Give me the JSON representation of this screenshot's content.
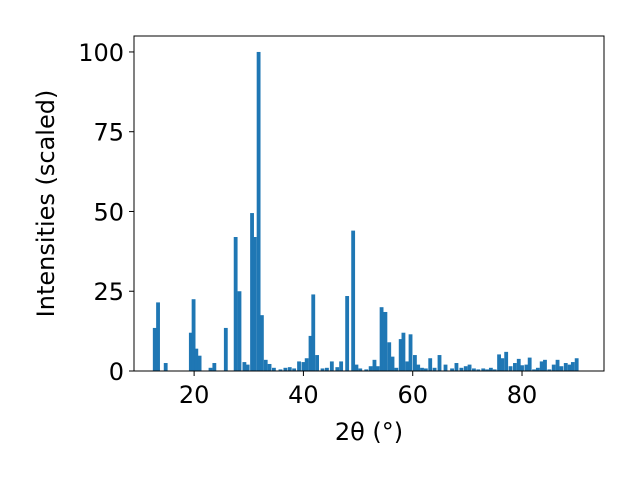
{
  "chart_data": {
    "type": "bar",
    "title": "",
    "xlabel": "2θ (°)",
    "ylabel": "Intensities (scaled)",
    "xlim": [
      9,
      95
    ],
    "ylim": [
      0,
      105
    ],
    "xticks": [
      20,
      40,
      60,
      80
    ],
    "yticks": [
      0,
      25,
      50,
      75,
      100
    ],
    "grid": false,
    "bar_color": "#1f77b4",
    "bar_width": 0.7,
    "points": [
      [
        12.8,
        13.5
      ],
      [
        13.4,
        21.5
      ],
      [
        14.8,
        2.5
      ],
      [
        19.4,
        12.0
      ],
      [
        19.9,
        22.5
      ],
      [
        20.4,
        7.0
      ],
      [
        21.0,
        4.8
      ],
      [
        23.0,
        1.0
      ],
      [
        23.7,
        2.5
      ],
      [
        25.8,
        13.5
      ],
      [
        27.6,
        42.0
      ],
      [
        28.3,
        25.0
      ],
      [
        29.2,
        2.8
      ],
      [
        29.8,
        2.0
      ],
      [
        30.6,
        49.5
      ],
      [
        31.1,
        42.0
      ],
      [
        31.8,
        100.0
      ],
      [
        32.4,
        17.5
      ],
      [
        33.1,
        3.5
      ],
      [
        33.8,
        2.2
      ],
      [
        34.6,
        1.0
      ],
      [
        35.8,
        0.5
      ],
      [
        36.7,
        1.0
      ],
      [
        37.5,
        1.2
      ],
      [
        38.3,
        0.8
      ],
      [
        39.2,
        3.0
      ],
      [
        40.0,
        2.8
      ],
      [
        40.6,
        4.0
      ],
      [
        41.3,
        11.0
      ],
      [
        41.8,
        24.0
      ],
      [
        42.5,
        5.0
      ],
      [
        43.5,
        0.8
      ],
      [
        44.3,
        1.0
      ],
      [
        45.2,
        3.0
      ],
      [
        46.2,
        1.2
      ],
      [
        46.9,
        3.0
      ],
      [
        48.0,
        23.5
      ],
      [
        49.1,
        44.0
      ],
      [
        49.7,
        2.0
      ],
      [
        50.4,
        0.8
      ],
      [
        51.5,
        0.5
      ],
      [
        52.3,
        1.5
      ],
      [
        53.0,
        3.5
      ],
      [
        53.6,
        1.5
      ],
      [
        54.3,
        20.0
      ],
      [
        55.0,
        18.5
      ],
      [
        55.7,
        9.0
      ],
      [
        56.3,
        4.5
      ],
      [
        57.0,
        1.0
      ],
      [
        57.8,
        10.0
      ],
      [
        58.3,
        12.0
      ],
      [
        59.0,
        3.0
      ],
      [
        59.6,
        11.5
      ],
      [
        60.4,
        5.0
      ],
      [
        61.0,
        2.0
      ],
      [
        61.7,
        1.0
      ],
      [
        62.4,
        0.8
      ],
      [
        63.2,
        4.0
      ],
      [
        64.0,
        1.0
      ],
      [
        64.9,
        5.0
      ],
      [
        66.0,
        2.0
      ],
      [
        67.2,
        0.8
      ],
      [
        68.0,
        2.5
      ],
      [
        68.9,
        1.0
      ],
      [
        69.7,
        1.5
      ],
      [
        70.4,
        2.0
      ],
      [
        71.2,
        0.8
      ],
      [
        72.0,
        0.5
      ],
      [
        72.9,
        0.8
      ],
      [
        73.6,
        0.5
      ],
      [
        74.3,
        1.0
      ],
      [
        75.0,
        0.5
      ],
      [
        75.8,
        5.2
      ],
      [
        76.4,
        4.0
      ],
      [
        77.1,
        6.0
      ],
      [
        77.9,
        1.5
      ],
      [
        78.7,
        2.5
      ],
      [
        79.4,
        3.8
      ],
      [
        80.0,
        1.8
      ],
      [
        80.8,
        2.0
      ],
      [
        81.4,
        4.2
      ],
      [
        82.2,
        0.5
      ],
      [
        82.9,
        1.0
      ],
      [
        83.6,
        3.0
      ],
      [
        84.2,
        3.5
      ],
      [
        85.0,
        0.5
      ],
      [
        85.8,
        2.0
      ],
      [
        86.5,
        3.5
      ],
      [
        87.2,
        1.5
      ],
      [
        88.0,
        2.5
      ],
      [
        88.7,
        2.0
      ],
      [
        89.3,
        2.8
      ],
      [
        90.0,
        4.0
      ]
    ]
  }
}
